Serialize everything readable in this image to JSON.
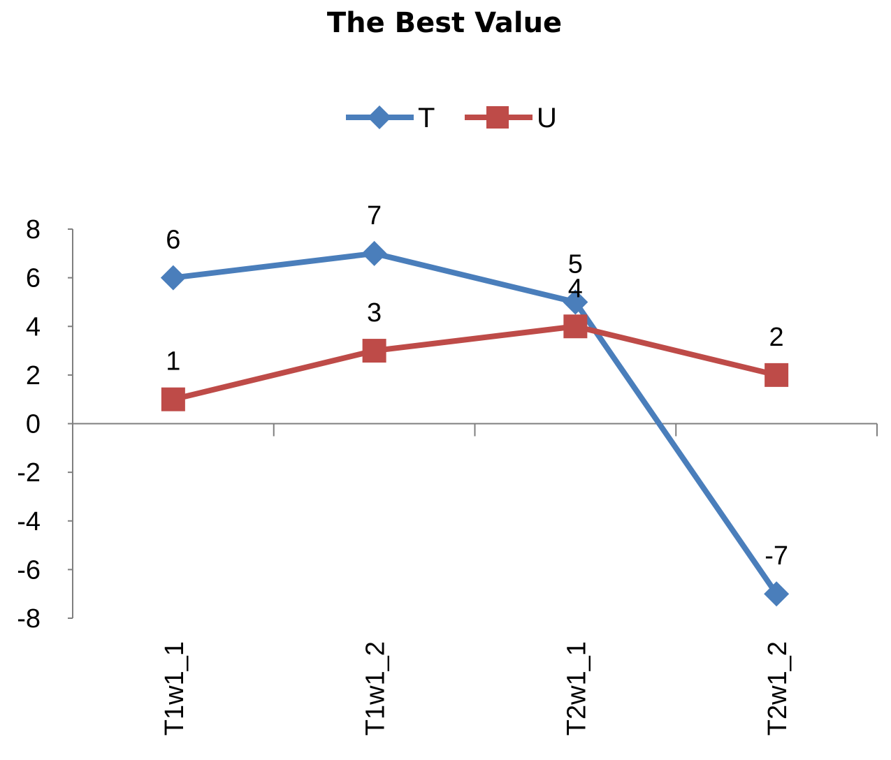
{
  "chart_data": {
    "type": "line",
    "title": "The Best Value",
    "categories": [
      "T1w1_1",
      "T1w1_2",
      "T2w1_1",
      "T2w1_2"
    ],
    "series": [
      {
        "name": "T",
        "values": [
          6,
          7,
          5,
          -7
        ],
        "color": "#4a7ebb",
        "marker": "diamond"
      },
      {
        "name": "U",
        "values": [
          1,
          3,
          4,
          2
        ],
        "color": "#be4b48",
        "marker": "square"
      }
    ],
    "ylim": [
      -8,
      8
    ],
    "yticks": [
      8,
      6,
      4,
      2,
      0,
      -2,
      -4,
      -6,
      -8
    ],
    "xlabel": "",
    "ylabel": "",
    "legend_position": "top",
    "grid": false,
    "data_labels": true
  }
}
